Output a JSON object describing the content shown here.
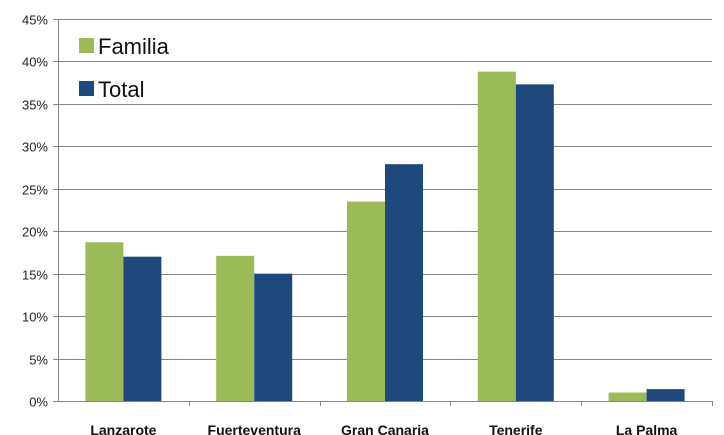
{
  "chart_data": {
    "type": "bar",
    "categories": [
      "Lanzarote",
      "Fuerteventura",
      "Gran Canaria",
      "Tenerife",
      "La Palma"
    ],
    "series": [
      {
        "name": "Familia",
        "values": [
          18.7,
          17.1,
          23.5,
          38.8,
          1.0
        ],
        "color": "#9bbb59"
      },
      {
        "name": "Total",
        "values": [
          17.0,
          15.0,
          27.9,
          37.3,
          1.4
        ],
        "color": "#1f497d"
      }
    ],
    "ylim": [
      0,
      45
    ],
    "y_ticks": [
      "0%",
      "5%",
      "10%",
      "15%",
      "20%",
      "25%",
      "30%",
      "35%",
      "40%",
      "45%"
    ],
    "y_tick_values": [
      0,
      5,
      10,
      15,
      20,
      25,
      30,
      35,
      40,
      45
    ],
    "grid": true,
    "legend_position": "top-left",
    "title": "",
    "xlabel": "",
    "ylabel": ""
  },
  "colors": {
    "grid": "#868686",
    "axis": "#868686"
  }
}
